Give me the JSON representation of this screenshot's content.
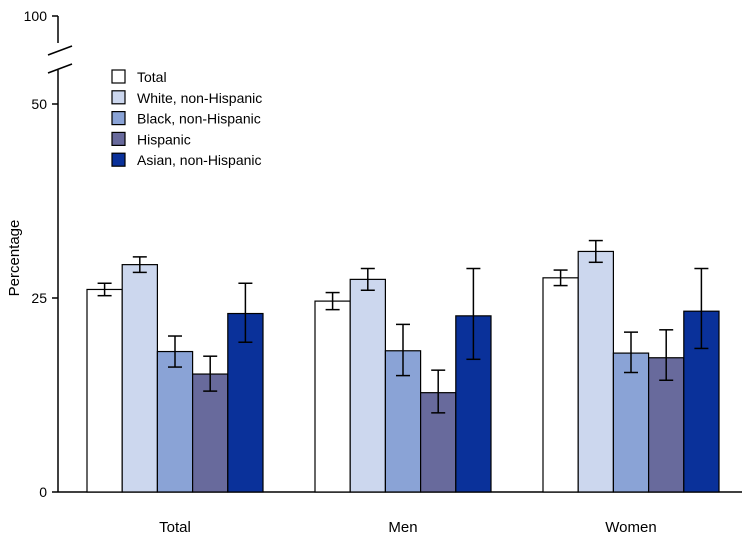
{
  "chart_data": {
    "type": "bar",
    "title": "",
    "xlabel": "",
    "ylabel": "Percentage",
    "ylim": [
      0,
      100
    ],
    "axis_break": [
      50,
      100
    ],
    "yticks": [
      "0",
      "25",
      "50",
      "100"
    ],
    "categories": [
      "Total",
      "Men",
      "Women"
    ],
    "series": [
      {
        "name": "Total",
        "color": "#ffffff",
        "values": [
          26.1,
          24.6,
          27.6
        ],
        "ci_low": [
          25.3,
          23.5,
          26.6
        ],
        "ci_high": [
          26.9,
          25.7,
          28.6
        ]
      },
      {
        "name": "White, non-Hispanic",
        "color": "#ccd7ee",
        "values": [
          29.3,
          27.4,
          31.0
        ],
        "ci_low": [
          28.3,
          26.0,
          29.6
        ],
        "ci_high": [
          30.3,
          28.8,
          32.4
        ]
      },
      {
        "name": "Black, non-Hispanic",
        "color": "#8aa3d6",
        "values": [
          18.1,
          18.2,
          17.9
        ],
        "ci_low": [
          16.1,
          15.0,
          15.4
        ],
        "ci_high": [
          20.1,
          21.6,
          20.6
        ]
      },
      {
        "name": "Hispanic",
        "color": "#686a9c",
        "values": [
          15.2,
          12.8,
          17.3
        ],
        "ci_low": [
          13.0,
          10.2,
          14.4
        ],
        "ci_high": [
          17.5,
          15.7,
          20.9
        ]
      },
      {
        "name": "Asian, non-Hispanic",
        "color": "#0a319a",
        "values": [
          23.0,
          22.7,
          23.3
        ],
        "ci_low": [
          19.3,
          17.1,
          18.5
        ],
        "ci_high": [
          26.9,
          28.8,
          28.8
        ]
      }
    ],
    "legend_position": "top-left",
    "grid": false
  }
}
